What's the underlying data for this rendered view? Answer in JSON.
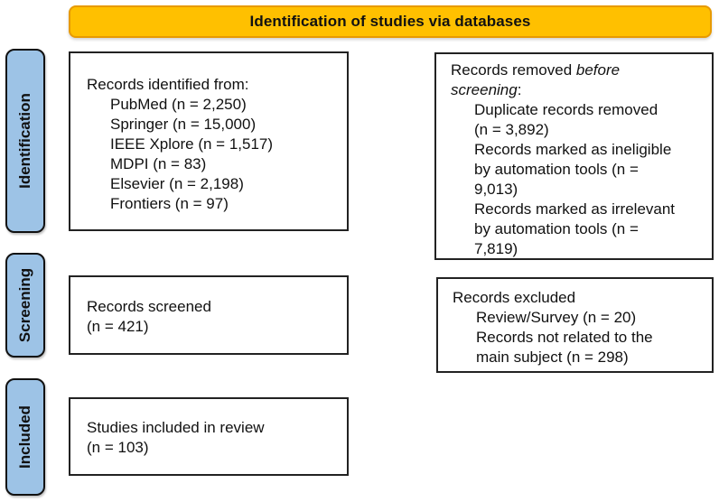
{
  "header": {
    "label": "Identification of studies via databases"
  },
  "colors": {
    "header_fill": "#FFC000",
    "header_border": "#E79A02",
    "stage_fill": "#9DC3E6",
    "stage_border": "#111111",
    "box_border": "#222222",
    "text": "#111111"
  },
  "sidebar": {
    "items": [
      {
        "label": "Identification"
      },
      {
        "label": "Screening"
      },
      {
        "label": "Included"
      }
    ]
  },
  "boxes": {
    "records_identified": {
      "lines": [
        {
          "indent": 0,
          "segments": [
            {
              "text": "Records identified from:"
            }
          ]
        },
        {
          "indent": 1,
          "segments": [
            {
              "text": "PubMed (n = 2,250)"
            }
          ]
        },
        {
          "indent": 1,
          "segments": [
            {
              "text": "Springer (n = 15,000)"
            }
          ]
        },
        {
          "indent": 1,
          "segments": [
            {
              "text": "IEEE Xplore (n = 1,517)"
            }
          ]
        },
        {
          "indent": 1,
          "segments": [
            {
              "text": "MDPI (n = 83)"
            }
          ]
        },
        {
          "indent": 1,
          "segments": [
            {
              "text": "Elsevier (n = 2,198)"
            }
          ]
        },
        {
          "indent": 1,
          "segments": [
            {
              "text": "Frontiers (n = 97)"
            }
          ]
        }
      ]
    },
    "records_removed": {
      "lines": [
        {
          "indent": 0,
          "segments": [
            {
              "text": "Records removed "
            },
            {
              "text": "before",
              "italic": true
            }
          ]
        },
        {
          "indent": 0,
          "segments": [
            {
              "text": "screening",
              "italic": true
            },
            {
              "text": ":"
            }
          ]
        },
        {
          "indent": 1,
          "segments": [
            {
              "text": "Duplicate records removed"
            }
          ]
        },
        {
          "indent": 1,
          "segments": [
            {
              "text": "(n = 3,892)"
            }
          ]
        },
        {
          "indent": 1,
          "segments": [
            {
              "text": "Records marked as ineligible"
            }
          ]
        },
        {
          "indent": 1,
          "segments": [
            {
              "text": "by automation tools (n ="
            }
          ]
        },
        {
          "indent": 1,
          "segments": [
            {
              "text": "9,013)"
            }
          ]
        },
        {
          "indent": 1,
          "segments": [
            {
              "text": "Records marked as irrelevant"
            }
          ]
        },
        {
          "indent": 1,
          "segments": [
            {
              "text": "by automation tools (n ="
            }
          ]
        },
        {
          "indent": 1,
          "segments": [
            {
              "text": "7,819)"
            }
          ]
        }
      ]
    },
    "records_screened": {
      "lines": [
        {
          "indent": 0,
          "segments": [
            {
              "text": "Records screened"
            }
          ]
        },
        {
          "indent": 0,
          "segments": [
            {
              "text": "(n = 421)"
            }
          ]
        }
      ]
    },
    "records_excluded": {
      "lines": [
        {
          "indent": 0,
          "segments": [
            {
              "text": "Records excluded"
            }
          ]
        },
        {
          "indent": 1,
          "segments": [
            {
              "text": "Review/Survey (n = 20)"
            }
          ]
        },
        {
          "indent": 1,
          "segments": [
            {
              "text": "Records not related to the"
            }
          ]
        },
        {
          "indent": 1,
          "segments": [
            {
              "text": "main subject (n = 298)"
            }
          ]
        }
      ]
    },
    "studies_included": {
      "lines": [
        {
          "indent": 0,
          "segments": [
            {
              "text": "Studies included in review"
            }
          ]
        },
        {
          "indent": 0,
          "segments": [
            {
              "text": "(n = 103)"
            }
          ]
        }
      ]
    }
  }
}
